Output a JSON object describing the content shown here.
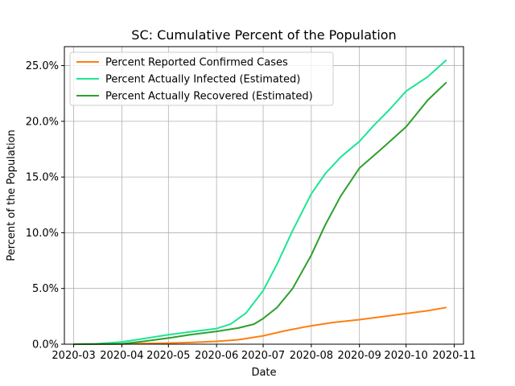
{
  "chart_data": {
    "type": "line",
    "title": "SC: Cumulative Percent of the Population",
    "xlabel": "Date",
    "ylabel": "Percent of the Population",
    "x_ticks": [
      "2020-03",
      "2020-04",
      "2020-05",
      "2020-06",
      "2020-07",
      "2020-08",
      "2020-09",
      "2020-10",
      "2020-11"
    ],
    "y_ticks": [
      "0.0%",
      "5.0%",
      "10.0%",
      "15.0%",
      "20.0%",
      "25.0%"
    ],
    "xlim": [
      "2020-02-24",
      "2020-11-07"
    ],
    "ylim": [
      0,
      26.7
    ],
    "grid": true,
    "legend_position": "top-left",
    "series": [
      {
        "name": "Percent Reported Confirmed Cases",
        "color": "#ff7f0e",
        "points": [
          [
            "2020-03-01",
            0.0
          ],
          [
            "2020-04-01",
            0.02
          ],
          [
            "2020-05-01",
            0.1
          ],
          [
            "2020-05-15",
            0.15
          ],
          [
            "2020-06-01",
            0.25
          ],
          [
            "2020-06-15",
            0.4
          ],
          [
            "2020-07-01",
            0.75
          ],
          [
            "2020-07-15",
            1.2
          ],
          [
            "2020-08-01",
            1.65
          ],
          [
            "2020-08-15",
            1.95
          ],
          [
            "2020-09-01",
            2.2
          ],
          [
            "2020-09-15",
            2.45
          ],
          [
            "2020-10-01",
            2.75
          ],
          [
            "2020-10-15",
            3.0
          ],
          [
            "2020-10-27",
            3.3
          ]
        ]
      },
      {
        "name": "Percent Actually Infected (Estimated)",
        "color": "#1de594",
        "points": [
          [
            "2020-03-01",
            0.0
          ],
          [
            "2020-03-15",
            0.03
          ],
          [
            "2020-04-01",
            0.2
          ],
          [
            "2020-04-15",
            0.5
          ],
          [
            "2020-05-01",
            0.85
          ],
          [
            "2020-05-15",
            1.1
          ],
          [
            "2020-06-01",
            1.4
          ],
          [
            "2020-06-10",
            1.8
          ],
          [
            "2020-06-20",
            2.8
          ],
          [
            "2020-07-01",
            4.8
          ],
          [
            "2020-07-10",
            7.2
          ],
          [
            "2020-07-20",
            10.2
          ],
          [
            "2020-08-01",
            13.5
          ],
          [
            "2020-08-10",
            15.3
          ],
          [
            "2020-08-20",
            16.8
          ],
          [
            "2020-09-01",
            18.2
          ],
          [
            "2020-09-10",
            19.6
          ],
          [
            "2020-09-20",
            21.0
          ],
          [
            "2020-10-01",
            22.7
          ],
          [
            "2020-10-15",
            24.0
          ],
          [
            "2020-10-27",
            25.5
          ]
        ]
      },
      {
        "name": "Percent Actually Recovered (Estimated)",
        "color": "#2ca02c",
        "points": [
          [
            "2020-03-01",
            0.0
          ],
          [
            "2020-04-01",
            0.03
          ],
          [
            "2020-04-15",
            0.25
          ],
          [
            "2020-05-01",
            0.55
          ],
          [
            "2020-05-15",
            0.85
          ],
          [
            "2020-06-01",
            1.15
          ],
          [
            "2020-06-15",
            1.45
          ],
          [
            "2020-06-25",
            1.8
          ],
          [
            "2020-07-01",
            2.3
          ],
          [
            "2020-07-10",
            3.3
          ],
          [
            "2020-07-20",
            5.0
          ],
          [
            "2020-08-01",
            8.0
          ],
          [
            "2020-08-10",
            10.7
          ],
          [
            "2020-08-20",
            13.3
          ],
          [
            "2020-09-01",
            15.8
          ],
          [
            "2020-09-15",
            17.5
          ],
          [
            "2020-10-01",
            19.5
          ],
          [
            "2020-10-15",
            21.9
          ],
          [
            "2020-10-27",
            23.5
          ]
        ]
      }
    ]
  }
}
